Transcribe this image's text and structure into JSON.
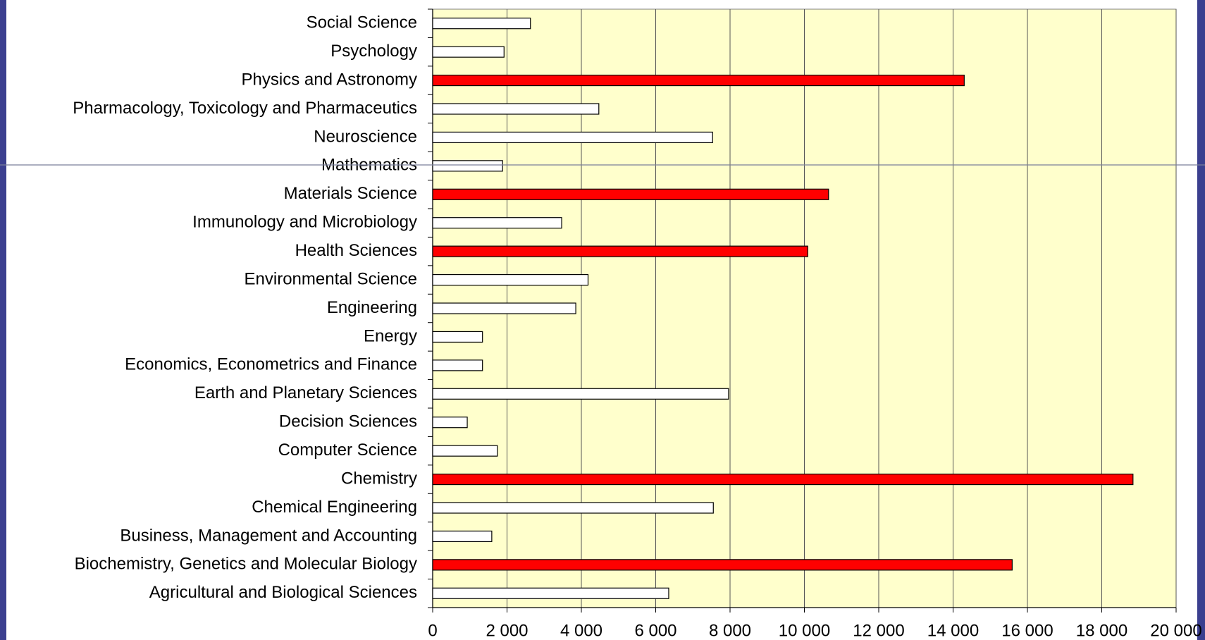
{
  "chart_data": {
    "type": "barh",
    "categories": [
      "Agricultural and Biological Sciences",
      "Biochemistry, Genetics and Molecular Biology",
      "Business, Management and Accounting",
      "Chemical Engineering",
      "Chemistry",
      "Computer Science",
      "Decision Sciences",
      "Earth and Planetary Sciences",
      "Economics, Econometrics and Finance",
      "Energy",
      "Engineering",
      "Environmental Science",
      "Health Sciences",
      "Immunology and Microbiology",
      "Materials Science",
      "Mathematics",
      "Neuroscience",
      "Pharmacology, Toxicology and Pharmaceutics",
      "Physics and Astronomy",
      "Psychology",
      "Social Science"
    ],
    "values": [
      6350,
      15590,
      1590,
      7550,
      18840,
      1740,
      930,
      7960,
      1340,
      1340,
      3850,
      4180,
      10090,
      3470,
      10650,
      1880,
      7530,
      4470,
      14300,
      1920,
      2630
    ],
    "colors": [
      "#ffffff",
      "#ff0000",
      "#ffffff",
      "#ffffff",
      "#ff0000",
      "#ffffff",
      "#ffffff",
      "#ffffff",
      "#ffffff",
      "#ffffff",
      "#ffffff",
      "#ffffff",
      "#ff0000",
      "#ffffff",
      "#ff0000",
      "#ffffff",
      "#ffffff",
      "#ffffff",
      "#ff0000",
      "#ffffff",
      "#ffffff"
    ],
    "xlim": [
      0,
      20000
    ],
    "xticks": [
      0,
      {
        "value": 2000,
        "label": "2 000"
      },
      {
        "value": 4000,
        "label": "4 000"
      },
      {
        "value": 6000,
        "label": "6 000"
      },
      {
        "value": 8000,
        "label": "8 000"
      },
      {
        "value": 10000,
        "label": "10 000"
      },
      {
        "value": 12000,
        "label": "12 000"
      },
      {
        "value": 14000,
        "label": "14 000"
      },
      {
        "value": 16000,
        "label": "16 000"
      },
      {
        "value": 18000,
        "label": "18 000"
      },
      {
        "value": 20000,
        "label": "20 000"
      }
    ],
    "grid": true,
    "plot_background": "#ffffcc"
  }
}
